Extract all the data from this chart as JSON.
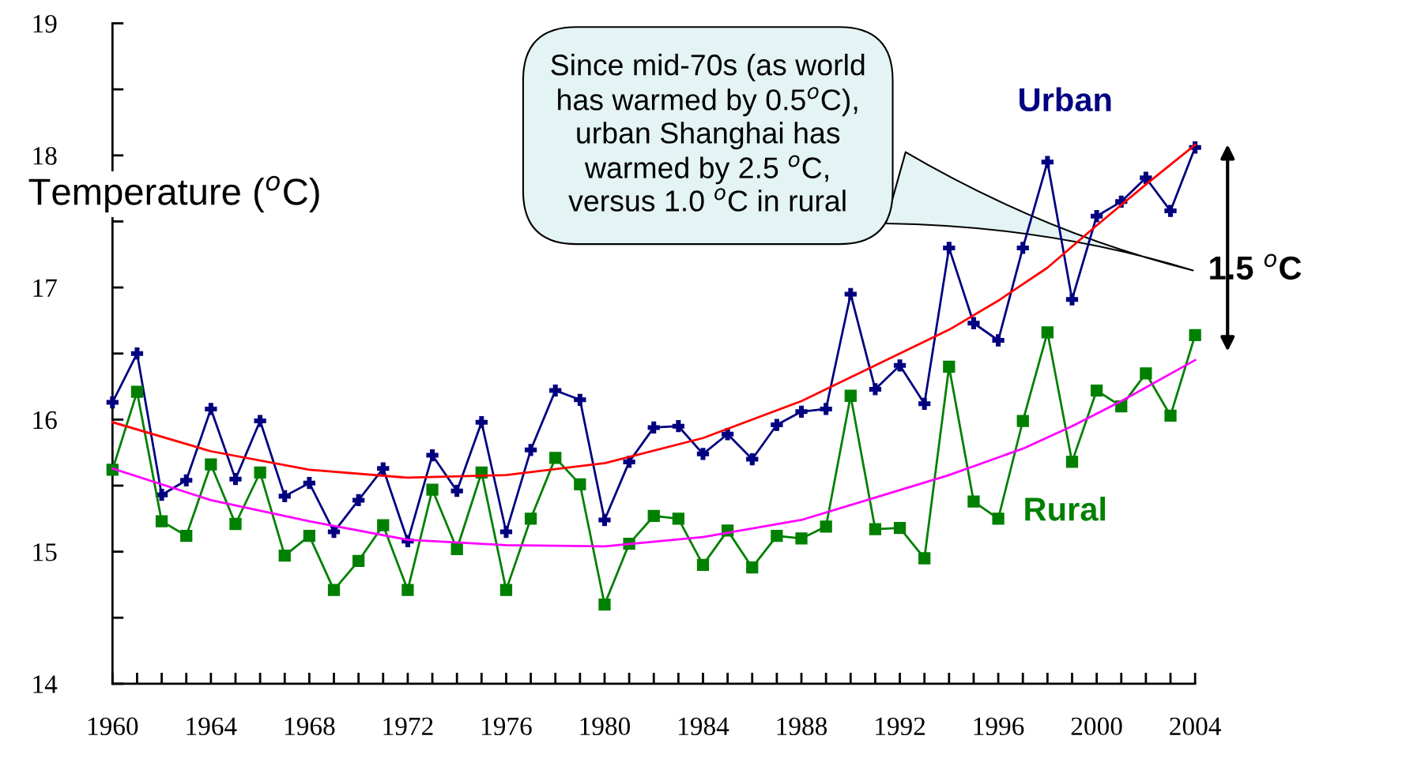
{
  "chart_data": {
    "type": "line",
    "ylabel": "Temperature ($^{o}$C)",
    "x": [
      1960,
      1961,
      1962,
      1963,
      1964,
      1965,
      1966,
      1967,
      1968,
      1969,
      1970,
      1971,
      1972,
      1973,
      1974,
      1975,
      1976,
      1977,
      1978,
      1979,
      1980,
      1981,
      1982,
      1983,
      1984,
      1985,
      1986,
      1987,
      1988,
      1989,
      1990,
      1991,
      1992,
      1993,
      1994,
      1995,
      1996,
      1997,
      1998,
      1999,
      2000,
      2001,
      2002,
      2003,
      2004
    ],
    "series": [
      {
        "name": "Urban",
        "color": "#000080",
        "marker": "cross",
        "values": [
          16.13,
          16.5,
          15.43,
          15.54,
          16.08,
          15.55,
          15.99,
          15.42,
          15.52,
          15.15,
          15.39,
          15.63,
          15.08,
          15.73,
          15.46,
          15.98,
          15.15,
          15.77,
          16.22,
          16.15,
          15.24,
          15.68,
          15.94,
          15.95,
          15.74,
          15.89,
          15.7,
          15.96,
          16.06,
          16.08,
          16.95,
          16.23,
          16.41,
          16.12,
          17.3,
          16.73,
          16.6,
          17.3,
          17.95,
          16.91,
          17.54,
          17.65,
          17.83,
          17.58,
          18.06
        ]
      },
      {
        "name": "Rural",
        "color": "#008000",
        "marker": "square",
        "values": [
          15.62,
          16.21,
          15.23,
          15.12,
          15.66,
          15.21,
          15.6,
          14.97,
          15.12,
          14.71,
          14.93,
          15.2,
          14.71,
          15.47,
          15.02,
          15.6,
          14.71,
          15.25,
          15.71,
          15.51,
          14.6,
          15.06,
          15.27,
          15.25,
          14.9,
          15.16,
          14.88,
          15.12,
          15.1,
          15.19,
          16.18,
          15.17,
          15.18,
          14.95,
          16.4,
          15.38,
          15.25,
          15.99,
          16.66,
          15.68,
          16.22,
          16.1,
          16.35,
          16.03,
          16.64
        ]
      },
      {
        "color": "#ff0000",
        "marker": "none",
        "x": [
          1960,
          1964,
          1968,
          1972,
          1976,
          1980,
          1984,
          1988,
          1991,
          1994,
          1996,
          1998,
          2000,
          2002,
          2004
        ],
        "values": [
          15.98,
          15.76,
          15.62,
          15.56,
          15.58,
          15.67,
          15.86,
          16.14,
          16.41,
          16.68,
          16.9,
          17.15,
          17.47,
          17.78,
          18.08
        ]
      },
      {
        "color": "#ff00ff",
        "marker": "none",
        "x": [
          1960,
          1964,
          1968,
          1972,
          1976,
          1980,
          1984,
          1988,
          1991,
          1994,
          1997,
          1999,
          2001,
          2004
        ],
        "values": [
          15.63,
          15.39,
          15.23,
          15.09,
          15.05,
          15.04,
          15.11,
          15.24,
          15.41,
          15.58,
          15.78,
          15.95,
          16.14,
          16.45
        ]
      }
    ],
    "annotations": [
      "Since mid-70s (as world\nhas warmed by 0.5$^{o}$C),\nurban Shanghai has\nwarmed by 2.5 $^{o}$C,\nversus 1.0 $^{o}$C in rural",
      "1.5 $^{o}$C"
    ],
    "xlim": [
      1960,
      2004
    ],
    "xticks": [
      1960,
      {
        "value": 1961,
        "label": null
      },
      {
        "value": 1962,
        "label": null
      },
      {
        "value": 1963,
        "label": null
      },
      1964,
      {
        "value": 1965,
        "label": null
      },
      {
        "value": 1966,
        "label": null
      },
      {
        "value": 1967,
        "label": null
      },
      1968,
      {
        "value": 1969,
        "label": null
      },
      {
        "value": 1970,
        "label": null
      },
      {
        "value": 1971,
        "label": null
      },
      1972,
      {
        "value": 1973,
        "label": null
      },
      {
        "value": 1974,
        "label": null
      },
      {
        "value": 1975,
        "label": null
      },
      1976,
      {
        "value": 1977,
        "label": null
      },
      {
        "value": 1978,
        "label": null
      },
      {
        "value": 1979,
        "label": null
      },
      1980,
      {
        "value": 1981,
        "label": null
      },
      {
        "value": 1982,
        "label": null
      },
      {
        "value": 1983,
        "label": null
      },
      1984,
      {
        "value": 1985,
        "label": null
      },
      {
        "value": 1986,
        "label": null
      },
      {
        "value": 1987,
        "label": null
      },
      1988,
      {
        "value": 1989,
        "label": null
      },
      {
        "value": 1990,
        "label": null
      },
      {
        "value": 1991,
        "label": null
      },
      1992,
      {
        "value": 1993,
        "label": null
      },
      {
        "value": 1994,
        "label": null
      },
      {
        "value": 1995,
        "label": null
      },
      1996,
      {
        "value": 1997,
        "label": null
      },
      {
        "value": 1998,
        "label": null
      },
      {
        "value": 1999,
        "label": null
      },
      2000,
      {
        "value": 2001,
        "label": null
      },
      {
        "value": 2002,
        "label": null
      },
      {
        "value": 2003,
        "label": null
      },
      2004
    ],
    "ylim": [
      14,
      19
    ],
    "yticks": [
      14,
      {
        "value": 14.5,
        "label": null
      },
      15,
      {
        "value": 15.5,
        "label": null
      },
      16,
      {
        "value": 16.5,
        "label": null
      },
      17,
      {
        "value": 17.5,
        "label": null
      },
      18,
      {
        "value": 18.5,
        "label": null
      },
      19
    ],
    "grid": false,
    "legend": false,
    "line_style": "solid"
  }
}
